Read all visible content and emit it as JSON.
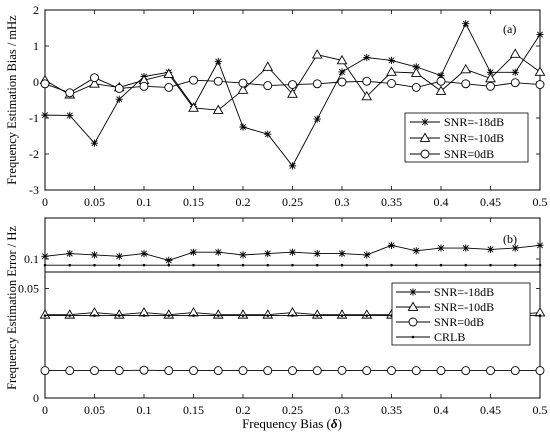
{
  "figure": {
    "xlabel_prefix": "Frequency Bias (",
    "xlabel_symbol": "δ",
    "xlabel_suffix": ")"
  },
  "chart_data": [
    {
      "type": "line",
      "panel_tag": "(a)",
      "ylabel": "Frequency Estimation Bias / mHz",
      "xlabel": "",
      "xlim": [
        0,
        0.5
      ],
      "ylim": [
        -3,
        2
      ],
      "xticks": [
        "0",
        "0.05",
        "0.1",
        "0.15",
        "0.2",
        "0.25",
        "0.3",
        "0.35",
        "0.4",
        "0.45",
        "0.5"
      ],
      "yticks": [
        "-3",
        "-2",
        "-1",
        "0",
        "1",
        "2"
      ],
      "grid": false,
      "legend_position": "lower-right",
      "x": [
        0,
        0.025,
        0.05,
        0.075,
        0.1,
        0.125,
        0.15,
        0.175,
        0.2,
        0.225,
        0.25,
        0.275,
        0.3,
        0.325,
        0.35,
        0.375,
        0.4,
        0.425,
        0.45,
        0.475,
        0.5
      ],
      "series": [
        {
          "name": "SNR=-18dB",
          "marker": "star",
          "values": [
            -0.92,
            -0.93,
            -1.7,
            -0.48,
            0.15,
            0.27,
            -0.68,
            0.57,
            -1.25,
            -1.45,
            -2.33,
            -1.03,
            0.28,
            0.68,
            0.6,
            0.42,
            0.18,
            1.62,
            0.27,
            0.27,
            1.32
          ]
        },
        {
          "name": "SNR=-10dB",
          "marker": "triangle",
          "values": [
            0.05,
            -0.35,
            -0.05,
            -0.15,
            0.05,
            0.22,
            -0.72,
            -0.78,
            -0.22,
            0.42,
            -0.33,
            0.76,
            0.6,
            -0.4,
            0.28,
            0.25,
            -0.25,
            0.35,
            0.1,
            0.78,
            0.28
          ]
        },
        {
          "name": "SNR=0dB",
          "marker": "circle",
          "values": [
            -0.05,
            -0.3,
            0.12,
            -0.18,
            -0.12,
            -0.15,
            0.05,
            0.02,
            -0.03,
            -0.1,
            -0.07,
            -0.05,
            0.0,
            0.02,
            -0.04,
            -0.15,
            0.02,
            -0.05,
            -0.12,
            -0.02,
            -0.07
          ]
        }
      ]
    },
    {
      "type": "line",
      "panel_tag": "(b)",
      "ylabel": "Frequency Estimation Error / Hz",
      "xlabel": "",
      "xlim": [
        0,
        0.5
      ],
      "ylim": [
        0,
        0.13
      ],
      "axis_break": {
        "lower": 0.0575,
        "upper": 0.0905
      },
      "xticks": [
        "0",
        "0.05",
        "0.1",
        "0.15",
        "0.2",
        "0.25",
        "0.3",
        "0.35",
        "0.4",
        "0.45",
        "0.5"
      ],
      "yticks": [
        "0",
        "0.05",
        "0.1"
      ],
      "grid": false,
      "legend_position": "right",
      "x": [
        0,
        0.025,
        0.05,
        0.075,
        0.1,
        0.125,
        0.15,
        0.175,
        0.2,
        0.225,
        0.25,
        0.275,
        0.3,
        0.325,
        0.35,
        0.375,
        0.4,
        0.425,
        0.45,
        0.475,
        0.5
      ],
      "series": [
        {
          "name": "SNR=-18dB",
          "marker": "star",
          "values": [
            0.102,
            0.104,
            0.103,
            0.102,
            0.104,
            0.099,
            0.105,
            0.105,
            0.103,
            0.104,
            0.105,
            0.104,
            0.104,
            0.103,
            0.11,
            0.106,
            0.108,
            0.108,
            0.107,
            0.108,
            0.11
          ]
        },
        {
          "name": "SNR=-10dB",
          "marker": "triangle",
          "values": [
            0.038,
            0.038,
            0.039,
            0.038,
            0.039,
            0.038,
            0.039,
            0.038,
            0.038,
            0.038,
            0.039,
            0.038,
            0.038,
            0.038,
            0.038,
            0.038,
            0.038,
            0.038,
            0.038,
            0.038,
            0.039
          ]
        },
        {
          "name": "SNR=0dB",
          "marker": "circle",
          "values": [
            0.0125,
            0.0125,
            0.0125,
            0.0125,
            0.0127,
            0.0125,
            0.0125,
            0.0125,
            0.0125,
            0.0125,
            0.0125,
            0.0125,
            0.0126,
            0.0125,
            0.0125,
            0.0125,
            0.0125,
            0.0125,
            0.0125,
            0.0125,
            0.0125
          ]
        },
        {
          "name": "CRLB",
          "marker": "dot",
          "values": [
            0.0376,
            0.0376,
            0.0376,
            0.0376,
            0.0376,
            0.0376,
            0.0376,
            0.0376,
            0.0376,
            0.0376,
            0.0376,
            0.0376,
            0.0376,
            0.0376,
            0.0376,
            0.0376,
            0.0376,
            0.0376,
            0.0376,
            0.0376,
            0.0376
          ],
          "values_upper_segment": [
            0.0955,
            0.0955,
            0.0955,
            0.0955,
            0.0955,
            0.0955,
            0.0955,
            0.0955,
            0.0955,
            0.0955,
            0.0955,
            0.0955,
            0.0955,
            0.0955,
            0.0955,
            0.0955,
            0.0955,
            0.0955,
            0.0955,
            0.0955,
            0.0955
          ]
        }
      ]
    }
  ]
}
